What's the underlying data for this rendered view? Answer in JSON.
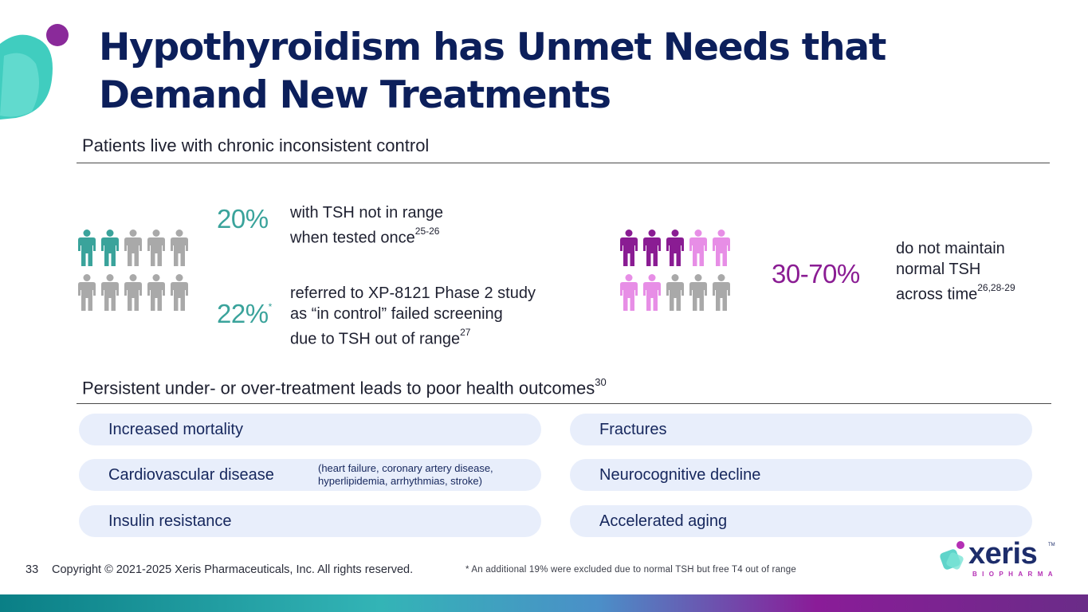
{
  "title": "Hypothyroidism has Unmet Needs that Demand New Treatments",
  "section1": {
    "heading": "Patients live with chronic inconsistent control",
    "stat1": {
      "value": "20%",
      "line1": "with TSH not in range",
      "line2": "when tested once",
      "ref": "25-26"
    },
    "stat2": {
      "value": "22%",
      "mark": "*",
      "line1": "referred to XP-8121 Phase 2 study",
      "line2": "as “in control” failed screening",
      "line3": "due to TSH out of range",
      "ref": "27"
    },
    "stat3": {
      "value": "30-70%",
      "line1": "do not maintain",
      "line2": "normal TSH",
      "line3": "across time",
      "ref": "26,28-29"
    }
  },
  "section2": {
    "heading": "Persistent under- or over-treatment leads to poor health outcomes",
    "ref": "30",
    "left_items": [
      {
        "label": "Increased mortality",
        "note": ""
      },
      {
        "label": "Cardiovascular disease",
        "note_line1": "(heart failure, coronary artery disease,",
        "note_line2": "hyperlipidemia, arrhythmias, stroke)"
      },
      {
        "label": "Insulin resistance",
        "note": ""
      }
    ],
    "right_items": [
      {
        "label": "Fractures"
      },
      {
        "label": "Neurocognitive decline"
      },
      {
        "label": "Accelerated aging"
      }
    ]
  },
  "footer": {
    "page_number": "33",
    "copyright": "Copyright © 2021-2025 Xeris Pharmaceuticals, Inc. All rights reserved.",
    "footnote": "* An additional 19% were excluded due to normal TSH but free T4 out of range"
  },
  "logo": {
    "word": "xeris",
    "sub": "BIOPHARMA",
    "tm": "TM"
  },
  "colors": {
    "title": "#0c1f5b",
    "teal": "#3aa39b",
    "purple": "#8a1c93",
    "light_purple": "#e78ee6",
    "gray": "#a9a9a9",
    "pill_bg": "#e8eefb"
  },
  "figures": {
    "left_group": {
      "total": 10,
      "highlighted": 2
    },
    "right_group": {
      "total": 10,
      "dark": 3,
      "light": 4
    }
  }
}
